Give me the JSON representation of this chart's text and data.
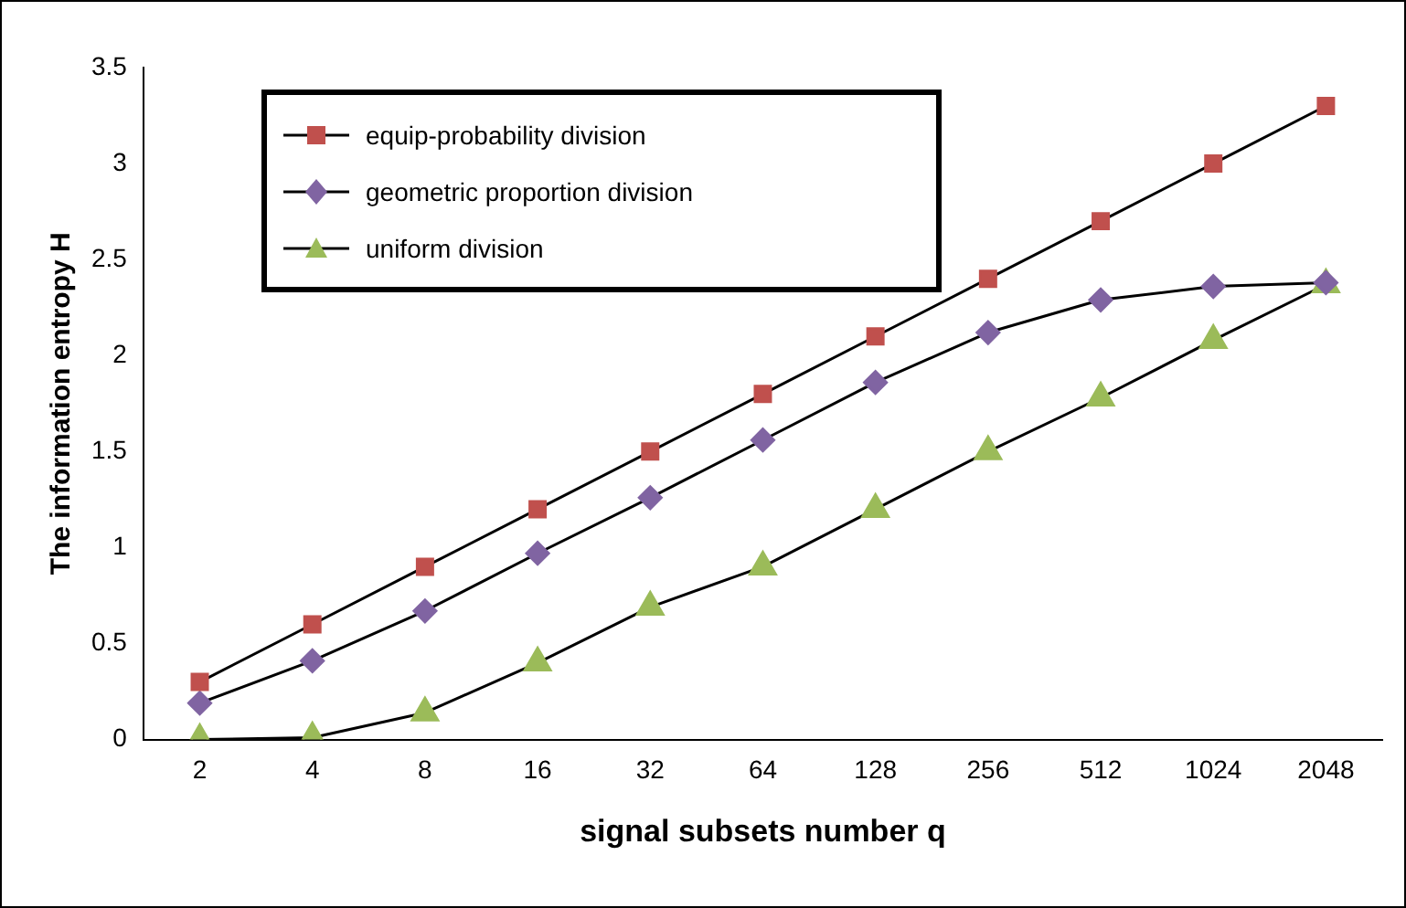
{
  "chart_data": {
    "type": "line",
    "xlabel": "signal subsets number q",
    "ylabel": "The information entropy H",
    "categories": [
      "2",
      "4",
      "8",
      "16",
      "32",
      "64",
      "128",
      "256",
      "512",
      "1024",
      "2048"
    ],
    "series": [
      {
        "name": "equip-probability division",
        "color": "#c0504d",
        "marker": "square",
        "values": [
          0.3,
          0.6,
          0.9,
          1.2,
          1.5,
          1.8,
          2.1,
          2.4,
          2.7,
          3.0,
          3.3
        ]
      },
      {
        "name": "geometric proportion division",
        "color": "#8064a2",
        "marker": "diamond",
        "values": [
          0.19,
          0.41,
          0.67,
          0.97,
          1.26,
          1.56,
          1.86,
          2.12,
          2.29,
          2.36,
          2.38
        ]
      },
      {
        "name": "uniform division",
        "color": "#9bbb59",
        "marker": "triangle",
        "values": [
          0,
          0.01,
          0.14,
          0.4,
          0.69,
          0.9,
          1.2,
          1.5,
          1.78,
          2.08,
          2.37
        ]
      }
    ],
    "ylim": [
      0,
      3.5
    ],
    "yticks": [
      0,
      0.5,
      1,
      1.5,
      2,
      2.5,
      3,
      3.5
    ],
    "grid": false,
    "legend": "top left"
  }
}
